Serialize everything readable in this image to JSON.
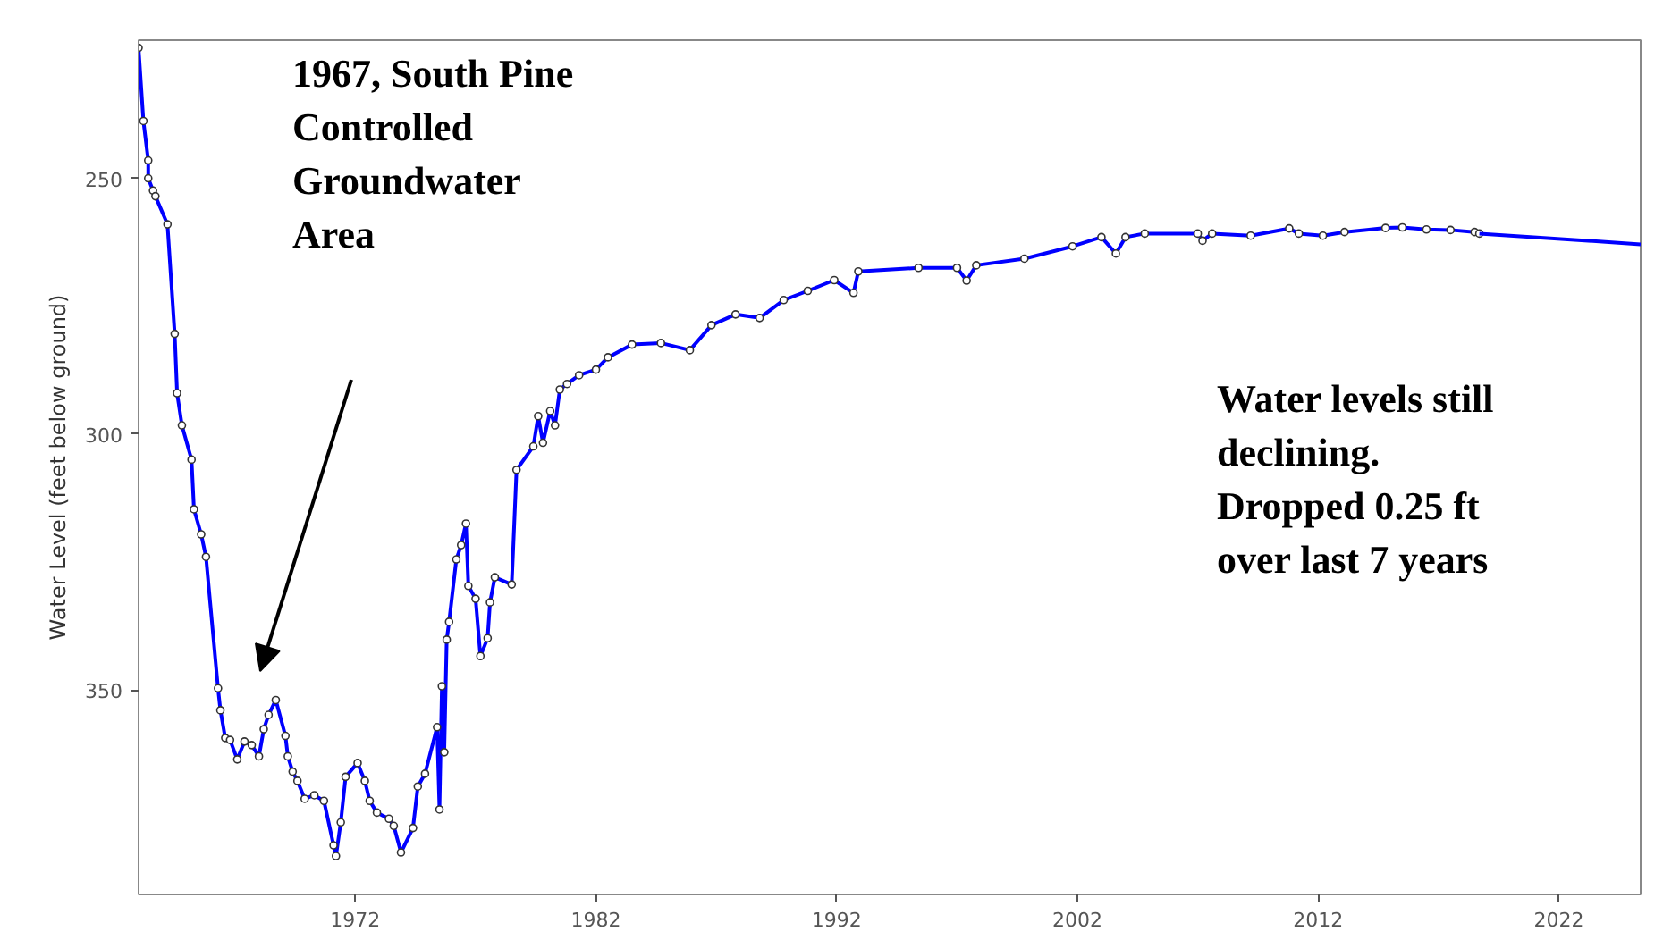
{
  "chart_data": {
    "type": "line",
    "ylabel": "Water Level (feet below ground)",
    "xlim": [
      1963.0,
      2025.4
    ],
    "ylim": [
      390,
      223
    ],
    "xticks": [
      1972,
      1982,
      1992,
      2002,
      2012,
      2022
    ],
    "yticks": [
      250,
      300,
      350
    ],
    "grid": false,
    "series": [
      {
        "color": "#0000ff",
        "marker": "circle",
        "x": [
          1963.0,
          1963.2,
          1963.4,
          1963.4,
          1963.6,
          1963.7,
          1964.2,
          1964.5,
          1964.6,
          1964.8,
          1965.2,
          1965.3,
          1965.6,
          1965.8,
          1966.3,
          1966.4,
          1966.6,
          1966.8,
          1967.1,
          1967.4,
          1967.7,
          1968.0,
          1968.2,
          1968.4,
          1968.7,
          1969.1,
          1969.2,
          1969.4,
          1969.6,
          1969.9,
          1970.3,
          1970.7,
          1971.1,
          1971.2,
          1971.4,
          1971.6,
          1972.1,
          1972.4,
          1972.6,
          1972.9,
          1973.4,
          1973.6,
          1973.9,
          1974.4,
          1974.6,
          1974.9,
          1975.4,
          1975.5,
          1975.6,
          1975.7,
          1975.8,
          1975.9,
          1976.2,
          1976.4,
          1976.6,
          1976.7,
          1977.0,
          1977.2,
          1977.5,
          1977.6,
          1977.8,
          1978.5,
          1978.7,
          1979.4,
          1979.6,
          1979.8,
          1980.1,
          1980.3,
          1980.5,
          1980.8,
          1981.3,
          1982.0,
          1982.5,
          1983.5,
          1984.7,
          1985.9,
          1986.8,
          1987.8,
          1988.8,
          1989.8,
          1990.8,
          1991.9,
          1992.7,
          1992.9,
          1995.4,
          1997.0,
          1997.4,
          1997.8,
          1999.8,
          2001.8,
          2003.0,
          2003.6,
          2004.0,
          2004.8,
          2007.0,
          2007.2,
          2007.6,
          2009.2,
          2010.8,
          2011.2,
          2012.2,
          2013.1,
          2014.8,
          2015.5,
          2016.5,
          2017.5,
          2018.5,
          2018.7
        ],
        "values": [
          224.5,
          238.8,
          246.5,
          250,
          252.4,
          253.5,
          259,
          280.4,
          292,
          298.3,
          305,
          314.7,
          319.6,
          324,
          349.7,
          354,
          359.4,
          359.8,
          363.6,
          360.1,
          360.8,
          363,
          357.7,
          354.9,
          352,
          359,
          363,
          366,
          367.8,
          371.3,
          370.6,
          371.7,
          380.4,
          382.5,
          375.9,
          367,
          364.3,
          367.8,
          371.7,
          374,
          375.2,
          376.6,
          381.8,
          377,
          368.9,
          366.4,
          357.3,
          373.4,
          349.3,
          362.2,
          340.2,
          336.7,
          324.5,
          321.7,
          317.5,
          329.7,
          332.2,
          343.4,
          339.9,
          332.9,
          328,
          329.4,
          307,
          302.4,
          296.5,
          301.7,
          295.5,
          298.3,
          291.3,
          290.2,
          288.5,
          287.4,
          285,
          282.5,
          282.2,
          283.6,
          278.7,
          276.6,
          277.3,
          273.8,
          272,
          269.9,
          272.4,
          268.2,
          267.5,
          267.5,
          270,
          267,
          265.7,
          263.3,
          261.5,
          264.7,
          261.5,
          260.8,
          260.8,
          262.2,
          260.8,
          261.2,
          259.8,
          260.8,
          261.2,
          260.5,
          259.7,
          259.6,
          260,
          260.1,
          260.5,
          260.8
        ]
      },
      {
        "color": "#0000ff",
        "marker": "none",
        "x": [
          2018.7,
          2025.4
        ],
        "values": [
          260.8,
          262.9
        ]
      }
    ],
    "annotations": [
      "1967, South Pine\nControlled\nGroundwater\nArea",
      "Water levels still\ndeclining.\nDropped 0.25 ft\nover last 7 years"
    ]
  }
}
